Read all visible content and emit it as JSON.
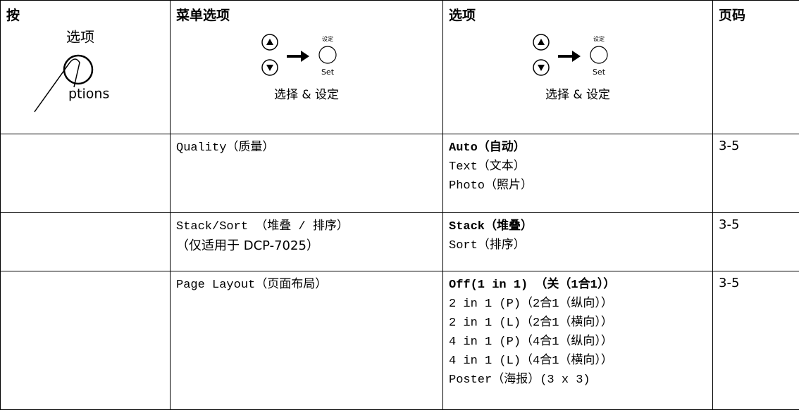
{
  "header": {
    "press": "按",
    "menu_selection": "菜单选项",
    "options": "选项",
    "page": "页码"
  },
  "button": {
    "label": "选项",
    "partial_text": "ptions"
  },
  "menu_icon": {
    "small_label": "设定",
    "set_label": "Set",
    "caption": "选择 & 设定"
  },
  "options_icon": {
    "small_label": "设定",
    "set_label": "Set",
    "caption": "选择 & 设定"
  },
  "rows": [
    {
      "menu": [
        "Quality（质量）"
      ],
      "options": [
        "Auto（自动）",
        "Text（文本）",
        "Photo（照片）"
      ],
      "page": "3-5"
    },
    {
      "menu": [
        "Stack/Sort （堆叠 / 排序）",
        "（仅适用于 DCP-7025）"
      ],
      "options": [
        "Stack（堆叠）",
        "Sort（排序）"
      ],
      "page": "3-5"
    },
    {
      "menu": [
        "Page Layout（页面布局）"
      ],
      "options": [
        "Off(1 in 1) （关（1合1））",
        "2 in 1 (P)（2合1（纵向））",
        "2 in 1 (L)（2合1（横向））",
        "4 in 1 (P)（4合1（纵向））",
        "4 in 1 (L)（4合1（横向））",
        "Poster（海报）(3 x 3)"
      ],
      "page": "3-5"
    }
  ]
}
